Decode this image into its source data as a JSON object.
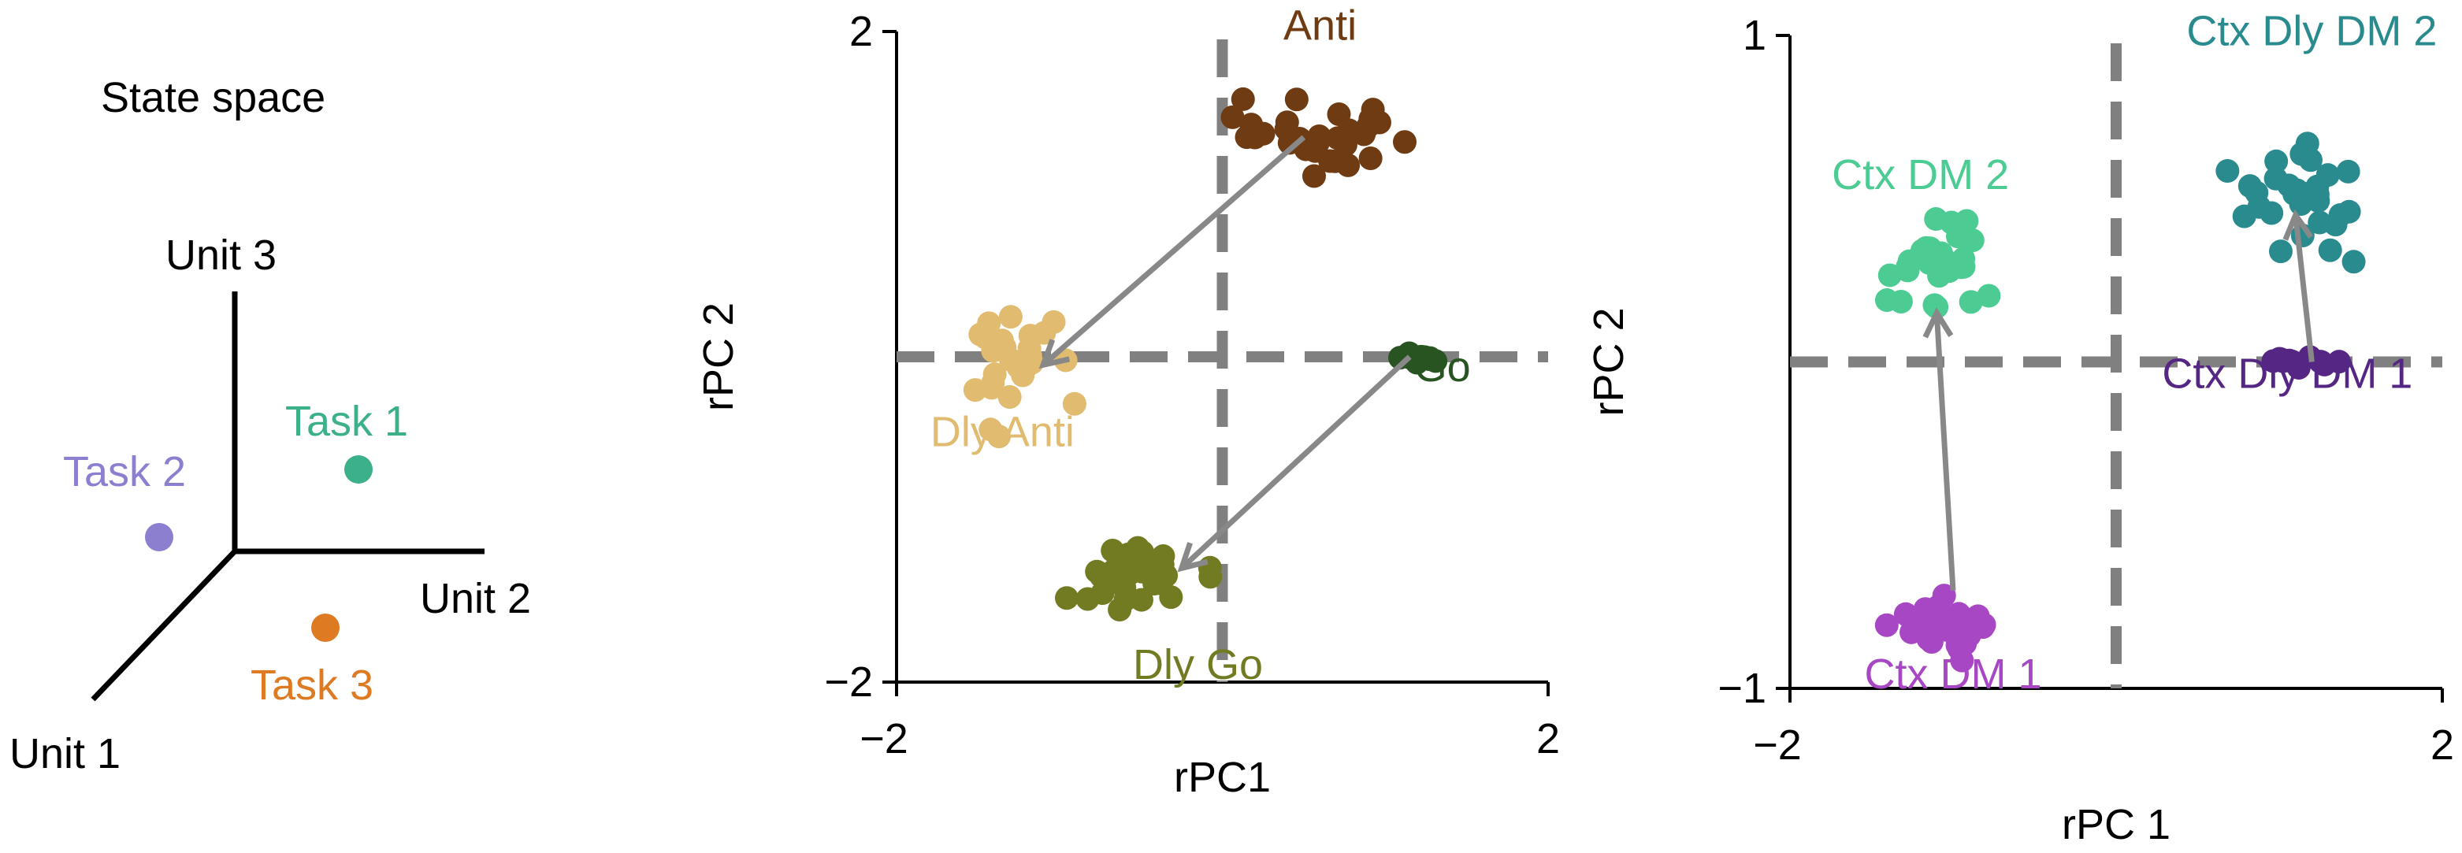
{
  "state_space": {
    "title": "State space",
    "axes": [
      {
        "name": "axis-unit-3",
        "label": "Unit 3"
      },
      {
        "name": "axis-unit-2",
        "label": "Unit 2"
      },
      {
        "name": "axis-unit-1",
        "label": "Unit 1"
      }
    ],
    "tasks": [
      {
        "label": "Task 1",
        "color": "#3bb08a"
      },
      {
        "label": "Task 2",
        "color": "#8c7fcf"
      },
      {
        "label": "Task 3",
        "color": "#dd7a22"
      }
    ]
  },
  "chart_data": [
    {
      "type": "scatter",
      "title": "",
      "xlabel": "rPC1",
      "ylabel": "rPC 2",
      "xlim": [
        -2,
        2
      ],
      "ylim": [
        -2,
        2
      ],
      "xticks": [
        "−2",
        "2"
      ],
      "yticks": [
        "−2",
        "2"
      ],
      "zero_lines": {
        "x": 0,
        "y": 0,
        "style": "dashed",
        "color": "#808080"
      },
      "series": [
        {
          "name": "Anti",
          "color": "#6e3b12",
          "center": [
            0.55,
            1.35
          ],
          "spread": [
            0.55,
            0.28
          ],
          "count": 30
        },
        {
          "name": "Dly Anti",
          "color": "#e0bb70",
          "center": [
            -1.3,
            -0.05
          ],
          "spread": [
            0.28,
            0.35
          ],
          "count": 30
        },
        {
          "name": "Go",
          "color": "#285421",
          "center": [
            1.2,
            0.0
          ],
          "spread": [
            0.2,
            0.04
          ],
          "count": 12
        },
        {
          "name": "Dly Go",
          "color": "#727a22",
          "center": [
            -0.45,
            -1.35
          ],
          "spread": [
            0.45,
            0.22
          ],
          "count": 30
        }
      ],
      "arrows": [
        {
          "from": [
            0.5,
            1.35
          ],
          "to": [
            -1.1,
            -0.05
          ]
        },
        {
          "from": [
            1.15,
            0.0
          ],
          "to": [
            -0.25,
            -1.3
          ]
        }
      ],
      "labels": [
        {
          "text": "Anti",
          "series": "Anti",
          "at": [
            0.6,
            1.95
          ]
        },
        {
          "text": "Dly Anti",
          "series": "Dly Anti",
          "at": [
            -1.35,
            -0.55
          ]
        },
        {
          "text": "Go",
          "series": "Go",
          "at": [
            1.35,
            -0.15
          ]
        },
        {
          "text": "Dly Go",
          "series": "Dly Go",
          "at": [
            -0.15,
            -1.98
          ]
        }
      ]
    },
    {
      "type": "scatter",
      "title": "",
      "xlabel": "rPC 1",
      "ylabel": "rPC 2",
      "xlim": [
        -2,
        2
      ],
      "ylim": [
        -1,
        1
      ],
      "xticks": [
        "−2",
        "2"
      ],
      "yticks": [
        "−1",
        "1"
      ],
      "zero_lines": {
        "x": 0,
        "y": 0,
        "style": "dashed",
        "color": "#808080"
      },
      "series": [
        {
          "name": "Ctx Dly DM 2",
          "color": "#2a8b8e",
          "center": [
            1.15,
            0.5
          ],
          "spread": [
            0.45,
            0.18
          ],
          "count": 30
        },
        {
          "name": "Ctx DM 2",
          "color": "#4ccb93",
          "center": [
            -1.15,
            0.3
          ],
          "spread": [
            0.35,
            0.17
          ],
          "count": 30
        },
        {
          "name": "Ctx Dly DM 1",
          "color": "#552683",
          "center": [
            1.15,
            0.0
          ],
          "spread": [
            0.32,
            0.02
          ],
          "count": 12
        },
        {
          "name": "Ctx DM 1",
          "color": "#a847c4",
          "center": [
            -1.0,
            -0.8
          ],
          "spread": [
            0.45,
            0.1
          ],
          "count": 30
        }
      ],
      "arrows": [
        {
          "from": [
            -1.0,
            -0.7
          ],
          "to": [
            -1.1,
            0.15
          ]
        },
        {
          "from": [
            1.2,
            0.0
          ],
          "to": [
            1.1,
            0.45
          ]
        }
      ],
      "labels": [
        {
          "text": "Ctx Dly DM 2",
          "series": "Ctx Dly DM 2",
          "at": [
            1.2,
            0.97
          ]
        },
        {
          "text": "Ctx DM 2",
          "series": "Ctx DM 2",
          "at": [
            -1.2,
            0.53
          ]
        },
        {
          "text": "Ctx Dly DM 1",
          "series": "Ctx Dly DM 1",
          "at": [
            1.05,
            -0.08
          ]
        },
        {
          "text": "Ctx DM 1",
          "series": "Ctx DM 1",
          "at": [
            -1.0,
            -1.0
          ]
        }
      ]
    }
  ]
}
